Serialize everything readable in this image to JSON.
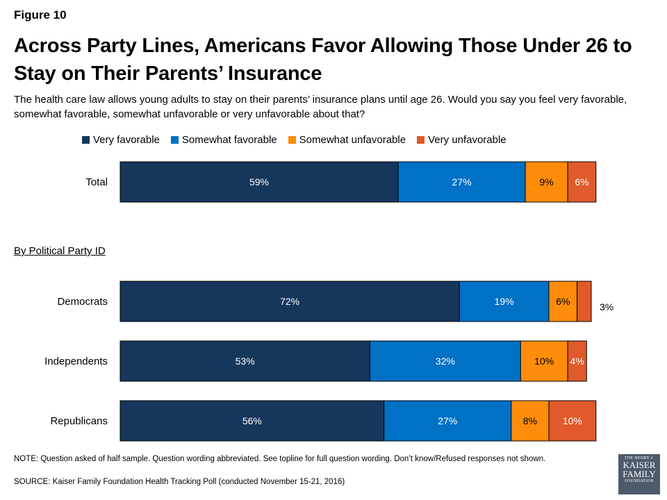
{
  "figure_label": "Figure 10",
  "title": "Across Party Lines, Americans Favor Allowing Those Under 26 to Stay on Their Parents’ Insurance",
  "subtitle": "The health care law allows young adults to stay on their parents’ insurance plans until age 26. Would you say you feel very favorable, somewhat favorable, somewhat unfavorable or very unfavorable about that?",
  "section_label": "By Political Party ID",
  "footnote": "NOTE: Question asked of half sample. Question wording abbreviated. See topline for full question wording. Don’t know/Refused responses not shown.",
  "source": "SOURCE: Kaiser Family Foundation Health Tracking Poll (conducted November 15-21, 2016)",
  "logo": {
    "line1": "THE HENRY J.",
    "line2": "KAISER",
    "line3": "FAMILY",
    "line4": "FOUNDATION"
  },
  "chart_data": {
    "type": "bar",
    "orientation": "horizontal",
    "stacked": true,
    "unit": "%",
    "xlim": [
      0,
      100
    ],
    "categories": [
      "Total",
      "Democrats",
      "Independents",
      "Republicans"
    ],
    "series": [
      {
        "name": "Very favorable",
        "color": "#16365c",
        "label_color": "#ffffff",
        "values": [
          59,
          72,
          53,
          56
        ]
      },
      {
        "name": "Somewhat favorable",
        "color": "#0071c5",
        "label_color": "#ffffff",
        "values": [
          27,
          19,
          32,
          27
        ]
      },
      {
        "name": "Somewhat unfavorable",
        "color": "#ff8c0a",
        "label_color": "#000000",
        "values": [
          9,
          6,
          10,
          8
        ]
      },
      {
        "name": "Very unfavorable",
        "color": "#e05a2b",
        "label_color": "#ffffff",
        "values": [
          6,
          3,
          4,
          10
        ]
      }
    ],
    "outside_labels": [
      {
        "category": "Democrats",
        "series": "Very unfavorable",
        "text": "3%"
      }
    ]
  }
}
